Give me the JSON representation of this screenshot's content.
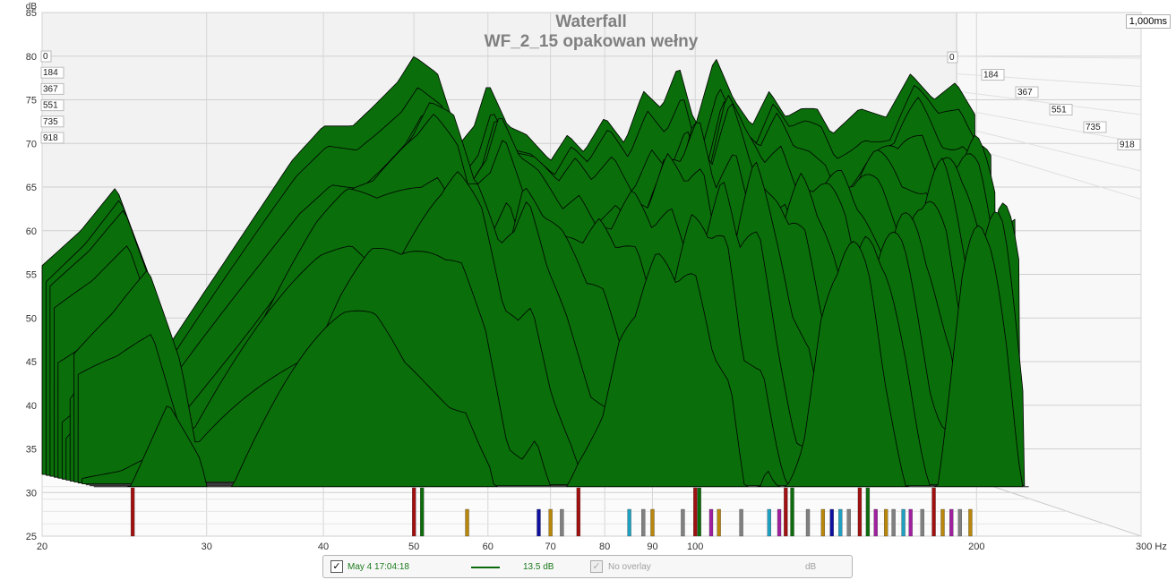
{
  "chart_data": {
    "type": "area",
    "title": "Waterfall",
    "subtitle": "WF_2_15 opakowan wełny",
    "xlabel": "Hz",
    "ylabel": "dB",
    "time_label": "1,000ms",
    "x_scale": "log",
    "xlim": [
      20,
      300
    ],
    "ylim": [
      25,
      85
    ],
    "grid": true,
    "x_ticks": [
      20,
      30,
      40,
      50,
      60,
      70,
      80,
      90,
      100,
      200,
      300
    ],
    "x_tick_labels": [
      "20",
      "30",
      "40",
      "50",
      "60",
      "70",
      "80",
      "90",
      "100",
      "200",
      "300 Hz"
    ],
    "y_ticks": [
      25,
      30,
      35,
      40,
      45,
      50,
      55,
      60,
      65,
      70,
      75,
      80,
      85
    ],
    "time_ticks": [
      "0",
      "184",
      "367",
      "551",
      "735",
      "918"
    ],
    "series": [
      {
        "name": "May 4 17:04:18",
        "color": "#006400",
        "freq": [
          20,
          22,
          24,
          26,
          27,
          29,
          33,
          37,
          40,
          43,
          45,
          48,
          50,
          53,
          56,
          58,
          60,
          63,
          66,
          70,
          73,
          76,
          80,
          84,
          88,
          92,
          96,
          100,
          105,
          110,
          115,
          120,
          125,
          130,
          135,
          140,
          150,
          160,
          170,
          180,
          190,
          200
        ],
        "db_at_0ms": [
          56,
          60,
          65,
          55,
          46,
          51,
          60,
          68,
          72,
          72,
          74,
          77,
          80,
          78,
          70,
          72,
          77,
          72,
          71,
          68,
          71,
          69,
          73,
          70,
          76,
          74,
          79,
          72,
          80,
          75,
          72,
          76,
          73,
          74,
          74,
          71,
          74,
          73,
          78,
          75,
          77,
          73
        ]
      }
    ],
    "peak_markers": [
      {
        "freq": 25,
        "color": "#a01010"
      },
      {
        "freq": 50,
        "color": "#a01010"
      },
      {
        "freq": 51,
        "color": "#0e6b0e"
      },
      {
        "freq": 57,
        "color": "#b8860b"
      },
      {
        "freq": 68,
        "color": "#1010a0"
      },
      {
        "freq": 70,
        "color": "#b8860b"
      },
      {
        "freq": 72,
        "color": "#808080"
      },
      {
        "freq": 75,
        "color": "#a01010"
      },
      {
        "freq": 85,
        "color": "#20a0c0"
      },
      {
        "freq": 88,
        "color": "#808080"
      },
      {
        "freq": 90,
        "color": "#b8860b"
      },
      {
        "freq": 97,
        "color": "#808080"
      },
      {
        "freq": 100,
        "color": "#a01010"
      },
      {
        "freq": 101,
        "color": "#0e6b0e"
      },
      {
        "freq": 104,
        "color": "#a020a0"
      },
      {
        "freq": 106,
        "color": "#b8860b"
      },
      {
        "freq": 112,
        "color": "#808080"
      },
      {
        "freq": 120,
        "color": "#20a0c0"
      },
      {
        "freq": 123,
        "color": "#a020a0"
      },
      {
        "freq": 125,
        "color": "#a01010"
      },
      {
        "freq": 127,
        "color": "#0e6b0e"
      },
      {
        "freq": 132,
        "color": "#808080"
      },
      {
        "freq": 137,
        "color": "#b8860b"
      },
      {
        "freq": 140,
        "color": "#1010a0"
      },
      {
        "freq": 143,
        "color": "#20a0c0"
      },
      {
        "freq": 146,
        "color": "#808080"
      },
      {
        "freq": 150,
        "color": "#a01010"
      },
      {
        "freq": 153,
        "color": "#0e6b0e"
      },
      {
        "freq": 156,
        "color": "#a020a0"
      },
      {
        "freq": 160,
        "color": "#b8860b"
      },
      {
        "freq": 163,
        "color": "#808080"
      },
      {
        "freq": 167,
        "color": "#20a0c0"
      },
      {
        "freq": 170,
        "color": "#a020a0"
      },
      {
        "freq": 175,
        "color": "#808080"
      },
      {
        "freq": 180,
        "color": "#a01010"
      },
      {
        "freq": 184,
        "color": "#b8860b"
      },
      {
        "freq": 188,
        "color": "#a020a0"
      },
      {
        "freq": 192,
        "color": "#808080"
      },
      {
        "freq": 197,
        "color": "#b8860b"
      }
    ]
  },
  "legend": {
    "date": "May 4 17:04:18",
    "value": "13.5 dB",
    "overlay": "No overlay",
    "unit": "dB",
    "check_mark": "✓"
  }
}
